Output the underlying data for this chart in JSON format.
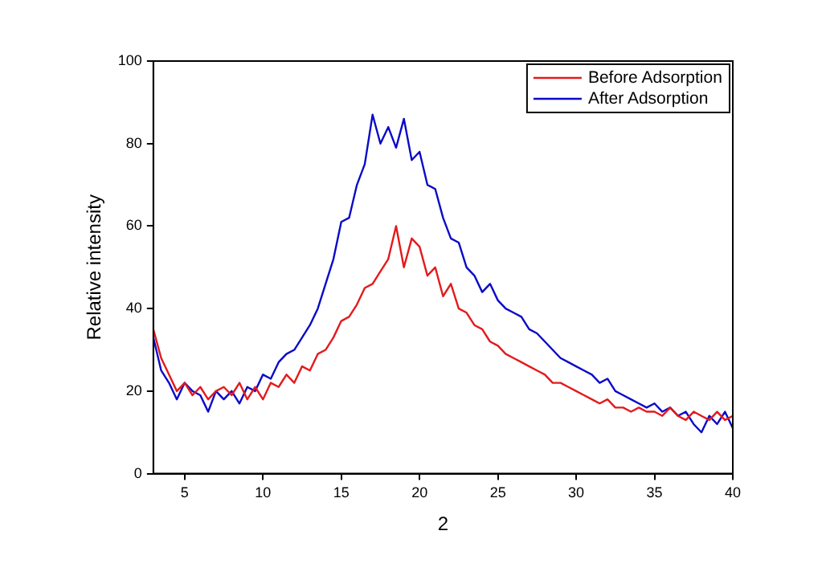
{
  "chart_data": {
    "type": "line",
    "xlabel": "2",
    "ylabel": "Relative intensity",
    "x": [
      3,
      3.5,
      4,
      4.5,
      5,
      5.5,
      6,
      6.5,
      7,
      7.5,
      8,
      8.5,
      9,
      9.5,
      10,
      10.5,
      11,
      11.5,
      12,
      12.5,
      13,
      13.5,
      14,
      14.5,
      15,
      15.5,
      16,
      16.5,
      17,
      17.5,
      18,
      18.5,
      19,
      19.5,
      20,
      20.5,
      21,
      21.5,
      22,
      22.5,
      23,
      23.5,
      24,
      24.5,
      25,
      25.5,
      26,
      26.5,
      27,
      27.5,
      28,
      28.5,
      29,
      29.5,
      30,
      30.5,
      31,
      31.5,
      32,
      32.5,
      33,
      33.5,
      34,
      34.5,
      35,
      35.5,
      36,
      36.5,
      37,
      37.5,
      38,
      38.5,
      39,
      39.5,
      40
    ],
    "series": [
      {
        "name": "Before Adsorption",
        "color": "#e31a1c",
        "values": [
          35,
          28,
          24,
          20,
          22,
          19,
          21,
          18,
          20,
          21,
          19,
          22,
          18,
          21,
          18,
          22,
          21,
          24,
          22,
          26,
          25,
          29,
          30,
          33,
          37,
          38,
          41,
          45,
          46,
          49,
          52,
          60,
          50,
          57,
          55,
          48,
          50,
          43,
          46,
          40,
          39,
          36,
          35,
          32,
          31,
          29,
          28,
          27,
          26,
          25,
          24,
          22,
          22,
          21,
          20,
          19,
          18,
          17,
          18,
          16,
          16,
          15,
          16,
          15,
          15,
          14,
          16,
          14,
          13,
          15,
          14,
          13,
          15,
          13,
          14
        ]
      },
      {
        "name": "After Adsorption",
        "color": "#0a0ac8",
        "values": [
          33,
          25,
          22,
          18,
          22,
          20,
          19,
          15,
          20,
          18,
          20,
          17,
          21,
          20,
          24,
          23,
          27,
          29,
          30,
          33,
          36,
          40,
          46,
          52,
          61,
          62,
          70,
          75,
          87,
          80,
          84,
          79,
          86,
          76,
          78,
          70,
          69,
          62,
          57,
          56,
          50,
          48,
          44,
          46,
          42,
          40,
          39,
          38,
          35,
          34,
          32,
          30,
          28,
          27,
          26,
          25,
          24,
          22,
          23,
          20,
          19,
          18,
          17,
          16,
          17,
          15,
          16,
          14,
          15,
          12,
          10,
          14,
          12,
          15,
          11
        ]
      }
    ],
    "xlim": [
      3,
      40
    ],
    "xticks": [
      5,
      10,
      15,
      20,
      25,
      30,
      35,
      40
    ],
    "ylim": [
      0,
      100
    ],
    "yticks": [
      0,
      20,
      40,
      60,
      80,
      100
    ],
    "grid": false,
    "legend": "top right",
    "marker": "none",
    "line_style": "solid"
  }
}
